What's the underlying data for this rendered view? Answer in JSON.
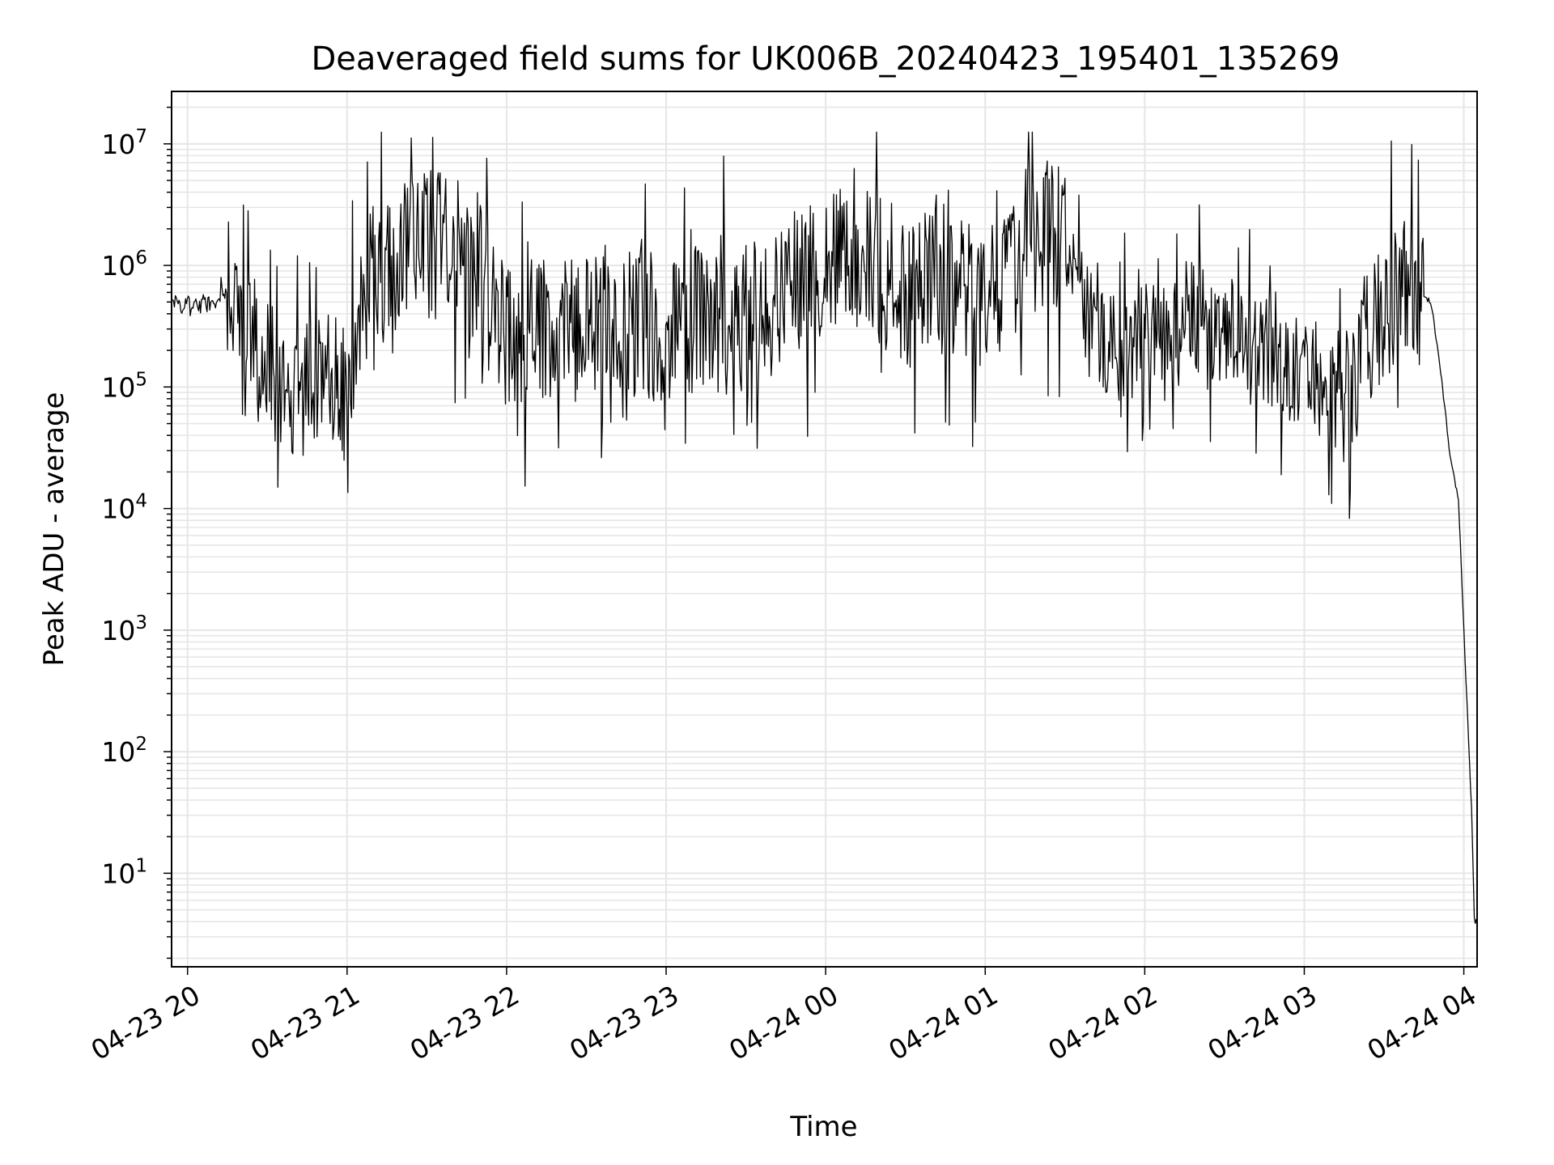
{
  "chart_data": {
    "type": "line",
    "title": "Deaveraged field sums for UK006B_20240423_195401_135269",
    "xlabel": "Time",
    "ylabel": "Peak ADU - average",
    "yscale": "log",
    "ylim": [
      1.7,
      27000000.0
    ],
    "xlim": [
      "2024-04-23 19:54",
      "2024-04-24 04:05"
    ],
    "grid": true,
    "line_color": "#000000",
    "grid_color": "#e6e6e6",
    "x_ticks": [
      "04-23 20",
      "04-23 21",
      "04-23 22",
      "04-23 23",
      "04-24 00",
      "04-24 01",
      "04-24 02",
      "04-24 03",
      "04-24 04"
    ],
    "y_ticks": [
      {
        "base": "10",
        "exp": "1",
        "value": 10
      },
      {
        "base": "10",
        "exp": "2",
        "value": 100
      },
      {
        "base": "10",
        "exp": "3",
        "value": 1000
      },
      {
        "base": "10",
        "exp": "4",
        "value": 10000
      },
      {
        "base": "10",
        "exp": "5",
        "value": 100000
      },
      {
        "base": "10",
        "exp": "6",
        "value": 1000000
      },
      {
        "base": "10",
        "exp": "7",
        "value": 10000000
      }
    ],
    "series": [
      {
        "x": [
          "2024-04-23 19:54",
          "2024-04-23 20:00",
          "2024-04-23 20:10",
          "2024-04-23 20:18",
          "2024-04-23 20:20",
          "2024-04-23 20:30",
          "2024-04-23 20:35",
          "2024-04-23 20:40",
          "2024-04-23 20:48",
          "2024-04-23 20:55",
          "2024-04-23 21:00",
          "2024-04-23 21:05",
          "2024-04-23 21:10",
          "2024-04-23 21:20",
          "2024-04-23 21:30",
          "2024-04-23 21:40",
          "2024-04-23 21:50",
          "2024-04-23 22:00",
          "2024-04-23 22:15",
          "2024-04-23 22:30",
          "2024-04-23 22:45",
          "2024-04-23 23:00",
          "2024-04-23 23:15",
          "2024-04-23 23:30",
          "2024-04-23 23:45",
          "2024-04-24 00:00",
          "2024-04-24 00:15",
          "2024-04-24 00:30",
          "2024-04-24 00:45",
          "2024-04-24 01:00",
          "2024-04-24 01:15",
          "2024-04-24 01:30",
          "2024-04-24 01:40",
          "2024-04-24 01:50",
          "2024-04-24 02:00",
          "2024-04-24 02:15",
          "2024-04-24 02:30",
          "2024-04-24 02:45",
          "2024-04-24 03:00",
          "2024-04-24 03:15",
          "2024-04-24 03:30",
          "2024-04-24 03:40",
          "2024-04-24 03:48",
          "2024-04-24 03:52",
          "2024-04-24 03:55",
          "2024-04-24 03:58",
          "2024-04-24 04:00",
          "2024-04-24 04:02",
          "2024-04-24 04:03",
          "2024-04-24 04:04",
          "2024-04-24 04:05"
        ],
        "y": [
          500000,
          450000,
          500000,
          650000,
          300000,
          200000,
          80000,
          90000,
          100000,
          120000,
          80000,
          500000,
          800000,
          1200000,
          1500000,
          1300000,
          800000,
          250000,
          300000,
          400000,
          350000,
          300000,
          400000,
          350000,
          600000,
          1000000,
          1200000,
          600000,
          800000,
          500000,
          1500000,
          1800000,
          300000,
          200000,
          250000,
          400000,
          300000,
          200000,
          120000,
          100000,
          400000,
          800000,
          450000,
          100000,
          25000,
          12000,
          1000,
          100,
          30,
          4,
          4
        ]
      }
    ]
  }
}
